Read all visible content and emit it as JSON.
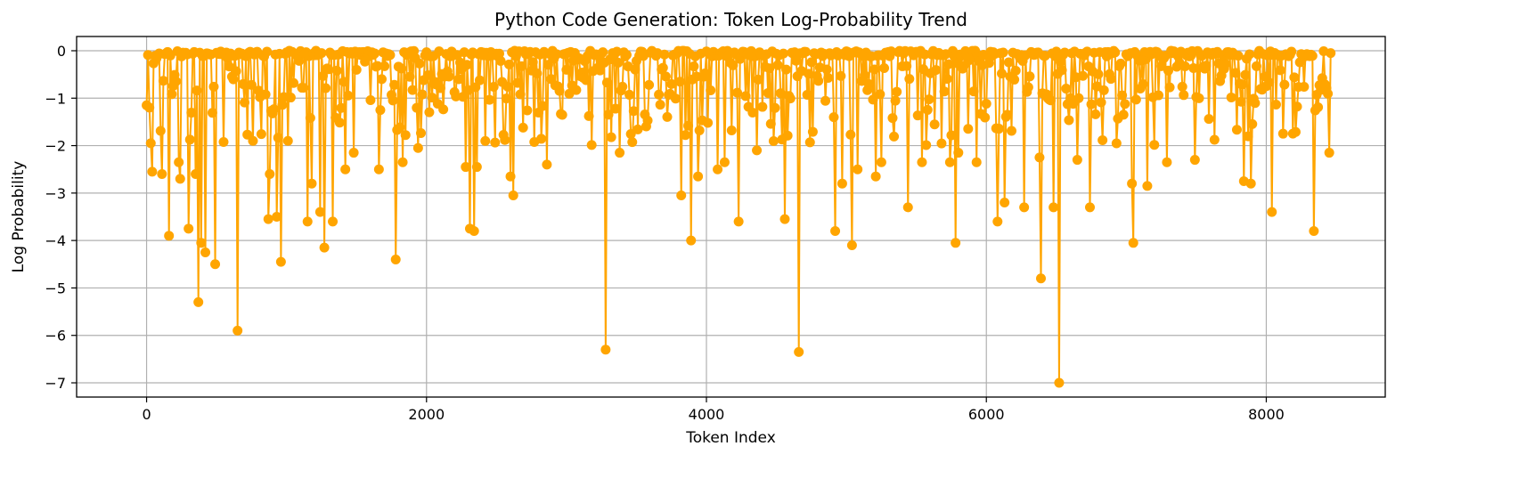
{
  "chart_data": {
    "type": "line",
    "title": "Python Code Generation: Token Log-Probability Trend",
    "xlabel": "Token Index",
    "ylabel": "Log Probability",
    "xlim": [
      -500,
      8850
    ],
    "ylim": [
      -7.3,
      0.3
    ],
    "x_ticks": [
      0,
      2000,
      4000,
      6000,
      8000
    ],
    "x_tick_labels": [
      "0",
      "2000",
      "4000",
      "6000",
      "8000"
    ],
    "y_ticks": [
      0,
      -1,
      -2,
      -3,
      -4,
      -5,
      -6,
      -7
    ],
    "y_tick_labels": [
      "0",
      "−1",
      "−2",
      "−3",
      "−4",
      "−5",
      "−6",
      "−7"
    ],
    "grid": true,
    "legend": "none",
    "series_color": "#FFA500",
    "marker": "circle",
    "total_tokens": 8460,
    "notable_dips": [
      [
        0,
        -1.15
      ],
      [
        25,
        -1.95
      ],
      [
        40,
        -2.55
      ],
      [
        110,
        -2.6
      ],
      [
        160,
        -3.9
      ],
      [
        230,
        -2.35
      ],
      [
        240,
        -2.7
      ],
      [
        295,
        -3.75
      ],
      [
        350,
        -2.6
      ],
      [
        370,
        -5.3
      ],
      [
        390,
        -4.05
      ],
      [
        420,
        -4.25
      ],
      [
        490,
        -4.5
      ],
      [
        650,
        -5.9
      ],
      [
        760,
        -1.9
      ],
      [
        870,
        -3.55
      ],
      [
        880,
        -2.6
      ],
      [
        930,
        -3.5
      ],
      [
        960,
        -4.45
      ],
      [
        1010,
        -1.9
      ],
      [
        1150,
        -3.6
      ],
      [
        1180,
        -2.8
      ],
      [
        1240,
        -3.4
      ],
      [
        1270,
        -4.15
      ],
      [
        1330,
        -3.6
      ],
      [
        1420,
        -2.5
      ],
      [
        1480,
        -2.15
      ],
      [
        1660,
        -2.5
      ],
      [
        1780,
        -4.4
      ],
      [
        1830,
        -2.35
      ],
      [
        1940,
        -2.05
      ],
      [
        2280,
        -2.45
      ],
      [
        2310,
        -3.75
      ],
      [
        2340,
        -3.8
      ],
      [
        2360,
        -2.45
      ],
      [
        2600,
        -2.65
      ],
      [
        2620,
        -3.05
      ],
      [
        2860,
        -2.4
      ],
      [
        3280,
        -6.3
      ],
      [
        3380,
        -2.15
      ],
      [
        3820,
        -3.05
      ],
      [
        3890,
        -4.0
      ],
      [
        3940,
        -2.65
      ],
      [
        4080,
        -2.5
      ],
      [
        4130,
        -2.35
      ],
      [
        4230,
        -3.6
      ],
      [
        4360,
        -2.1
      ],
      [
        4560,
        -3.55
      ],
      [
        4660,
        -6.35
      ],
      [
        4920,
        -3.8
      ],
      [
        4970,
        -2.8
      ],
      [
        5040,
        -4.1
      ],
      [
        5080,
        -2.5
      ],
      [
        5210,
        -2.65
      ],
      [
        5250,
        -2.35
      ],
      [
        5440,
        -3.3
      ],
      [
        5540,
        -2.35
      ],
      [
        5740,
        -2.35
      ],
      [
        5780,
        -4.05
      ],
      [
        5800,
        -2.15
      ],
      [
        5930,
        -2.35
      ],
      [
        6080,
        -3.6
      ],
      [
        6080,
        -2.8
      ],
      [
        6130,
        -3.2
      ],
      [
        6270,
        -3.3
      ],
      [
        6380,
        -2.25
      ],
      [
        6390,
        -4.8
      ],
      [
        6480,
        -3.3
      ],
      [
        6520,
        -7.0
      ],
      [
        6650,
        -2.3
      ],
      [
        6740,
        -3.3
      ],
      [
        7050,
        -4.05
      ],
      [
        7040,
        -2.8
      ],
      [
        7150,
        -2.85
      ],
      [
        7290,
        -2.35
      ],
      [
        7490,
        -2.3
      ],
      [
        7840,
        -2.75
      ],
      [
        7890,
        -2.8
      ],
      [
        8040,
        -3.4
      ],
      [
        8340,
        -3.8
      ],
      [
        8450,
        -2.15
      ]
    ]
  }
}
